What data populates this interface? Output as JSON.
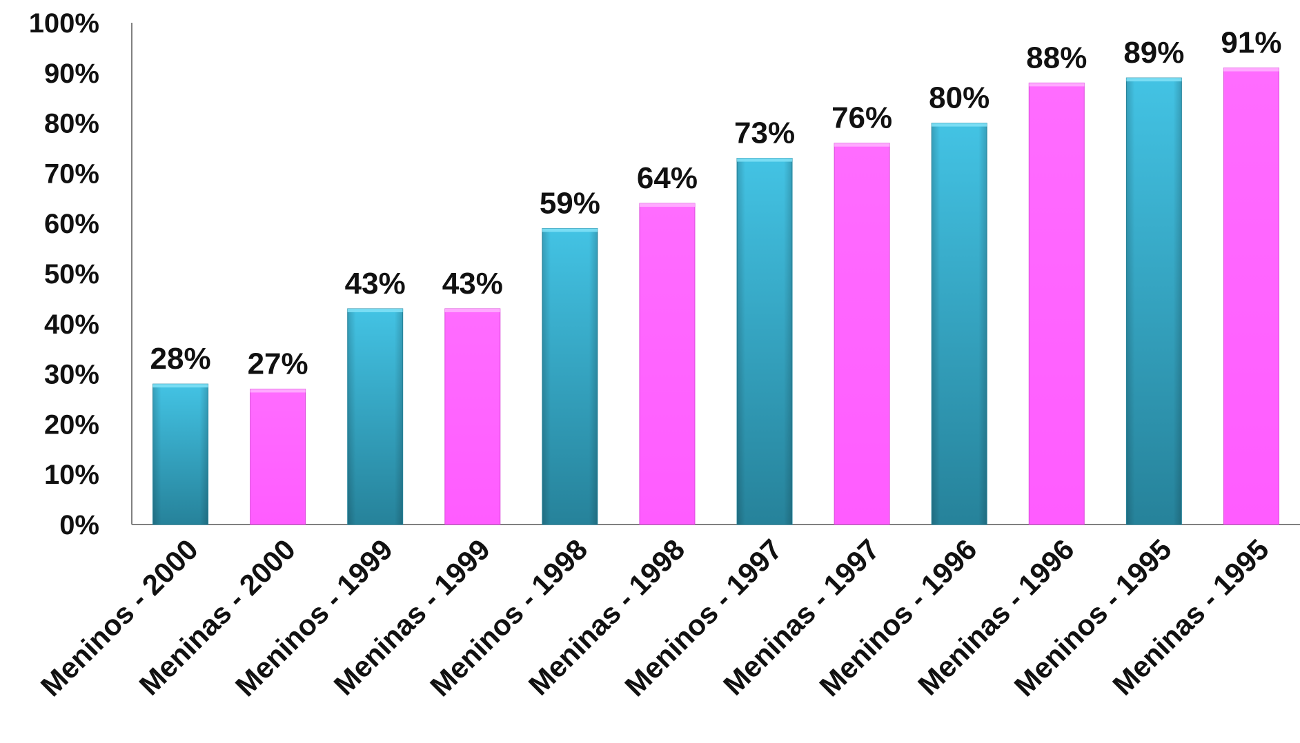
{
  "chart_data": {
    "type": "bar",
    "title": "",
    "xlabel": "",
    "ylabel": "",
    "ylim": [
      0,
      100
    ],
    "yticks": [
      "0%",
      "10%",
      "20%",
      "30%",
      "40%",
      "50%",
      "60%",
      "70%",
      "80%",
      "90%",
      "100%"
    ],
    "grid": false,
    "legend": "none",
    "categories": [
      "Meninos - 2000",
      "Meninas - 2000",
      "Meninos - 1999",
      "Meninas - 1999",
      "Meninos - 1998",
      "Meninas - 1998",
      "Meninos - 1997",
      "Meninas - 1997",
      "Meninos - 1996",
      "Meninas - 1996",
      "Meninos - 1995",
      "Meninas - 1995"
    ],
    "values": [
      28,
      27,
      43,
      43,
      59,
      64,
      73,
      76,
      80,
      88,
      89,
      91
    ],
    "data_labels": [
      "28%",
      "27%",
      "43%",
      "43%",
      "59%",
      "64%",
      "73%",
      "76%",
      "80%",
      "88%",
      "89%",
      "91%"
    ],
    "bar_colors": [
      "#38b6d8",
      "#ff66ff",
      "#38b6d8",
      "#ff66ff",
      "#38b6d8",
      "#ff66ff",
      "#38b6d8",
      "#ff66ff",
      "#38b6d8",
      "#ff66ff",
      "#38b6d8",
      "#ff66ff"
    ],
    "colors": {
      "meninos_top": "#40bfe0",
      "meninos_bottom": "#27839b",
      "meninas": "#ff66ff",
      "meninas_edge": "#d94bd9",
      "axis": "#808080"
    }
  }
}
